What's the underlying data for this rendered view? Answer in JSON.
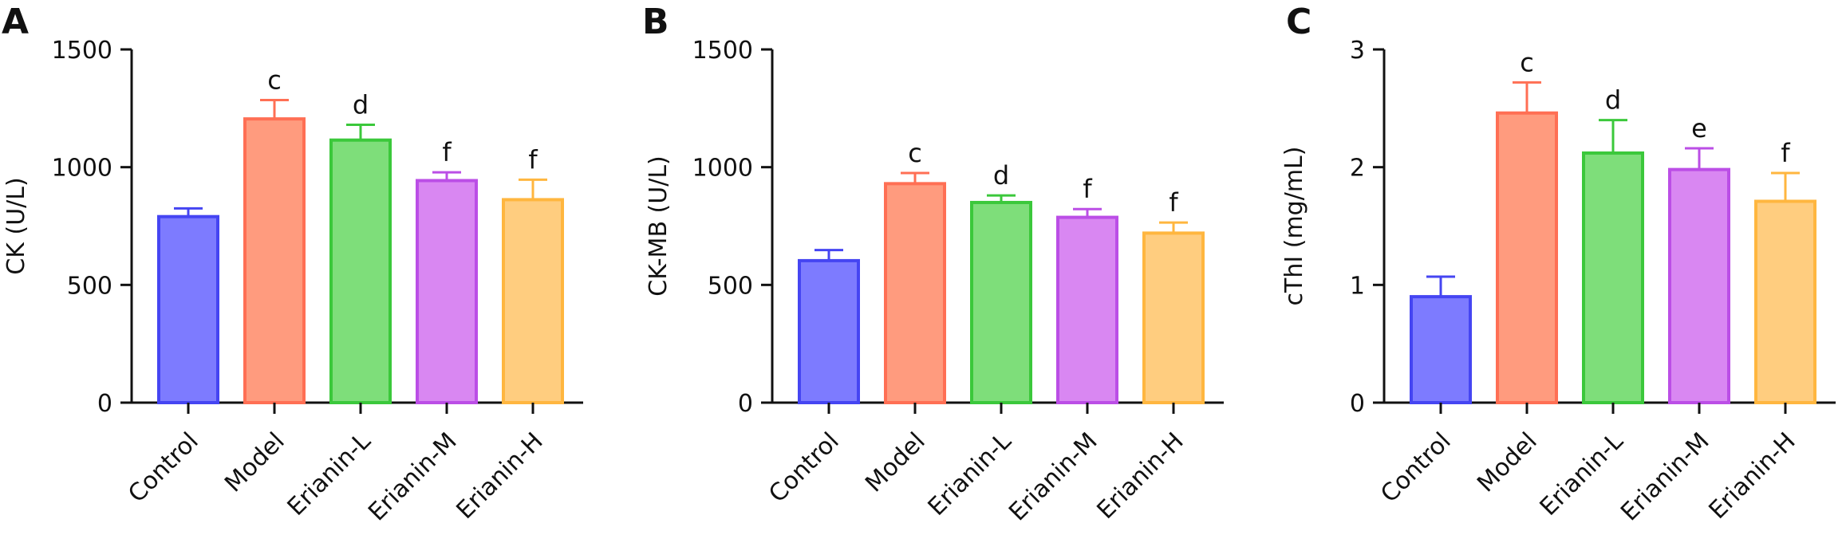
{
  "chart_data": [
    {
      "panel": "A",
      "type": "bar",
      "ylabel": "CK (U/L)",
      "ylim": [
        0,
        1500
      ],
      "yticks": [
        0,
        500,
        1000,
        1500
      ],
      "categories": [
        "Control",
        "Model",
        "Erianin-L",
        "Erianin-M",
        "Erianin-H"
      ],
      "values": [
        790,
        1205,
        1115,
        943,
        862
      ],
      "errors": [
        35,
        80,
        65,
        35,
        85
      ],
      "significance": [
        "",
        "c",
        "d",
        "f",
        "f"
      ]
    },
    {
      "panel": "B",
      "type": "bar",
      "ylabel": "CK-MB (U/L)",
      "ylim": [
        0,
        1500
      ],
      "yticks": [
        0,
        500,
        1000,
        1500
      ],
      "categories": [
        "Control",
        "Model",
        "Erianin-L",
        "Erianin-M",
        "Erianin-H"
      ],
      "values": [
        603,
        930,
        850,
        787,
        720
      ],
      "errors": [
        45,
        45,
        30,
        35,
        45
      ],
      "significance": [
        "",
        "c",
        "d",
        "f",
        "f"
      ]
    },
    {
      "panel": "C",
      "type": "bar",
      "ylabel": "cThI (mg/mL)",
      "ylim": [
        0,
        3
      ],
      "yticks": [
        0,
        1,
        2,
        3
      ],
      "categories": [
        "Control",
        "Model",
        "Erianin-L",
        "Erianin-M",
        "Erianin-H"
      ],
      "values": [
        0.9,
        2.46,
        2.12,
        1.98,
        1.71
      ],
      "errors": [
        0.17,
        0.26,
        0.28,
        0.18,
        0.24
      ],
      "significance": [
        "",
        "c",
        "d",
        "e",
        "f"
      ]
    }
  ],
  "colors": {
    "fills": [
      "#7d7bff",
      "#ff9b7e",
      "#7ede7a",
      "#d987f2",
      "#ffcd7f"
    ],
    "strokes": [
      "#4545f2",
      "#ff6f54",
      "#3bc83b",
      "#bb4ee6",
      "#ffb63f"
    ],
    "axis": "#111111"
  }
}
